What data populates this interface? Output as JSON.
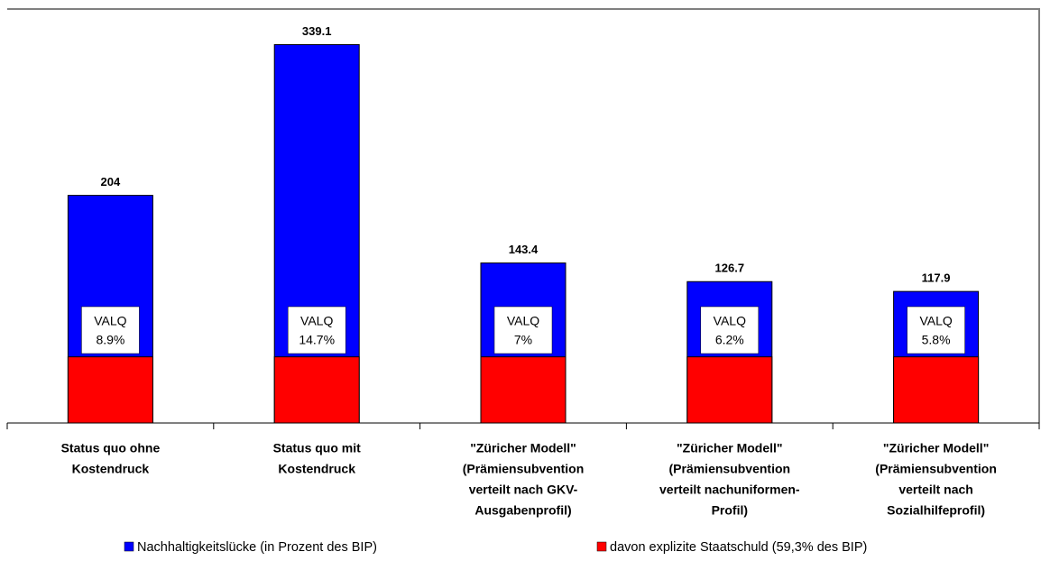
{
  "chart_data": {
    "type": "bar",
    "categories": [
      [
        "Status quo ohne",
        "Kostendruck"
      ],
      [
        "Status quo mit",
        "Kostendruck"
      ],
      [
        "\"Züricher Modell\"",
        "(Prämiensubvention",
        "verteilt nach GKV-",
        "Ausgabenprofil)"
      ],
      [
        "\"Züricher Modell\"",
        "(Prämiensubvention",
        "verteilt nachuniformen-",
        "Profil)"
      ],
      [
        "\"Züricher Modell\"",
        "(Prämiensubvention",
        "verteilt nach",
        "Sozialhilfeprofil)"
      ]
    ],
    "series": [
      {
        "name": "Nachhaltigkeitslücke (in Prozent des BIP)",
        "color": "#0000ff",
        "values": [
          204,
          339.1,
          143.4,
          126.7,
          117.9
        ]
      },
      {
        "name": "davon explizite Staatschuld (59,3% des BIP)",
        "color": "#ff0000",
        "values": [
          59.3,
          59.3,
          59.3,
          59.3,
          59.3
        ]
      }
    ],
    "annotations": [
      [
        "VALQ",
        "8.9%"
      ],
      [
        "VALQ",
        "14.7%"
      ],
      [
        "VALQ",
        "7%"
      ],
      [
        "VALQ",
        "6.2%"
      ],
      [
        "VALQ",
        "5.8%"
      ]
    ],
    "ylim": [
      0,
      371
    ]
  }
}
